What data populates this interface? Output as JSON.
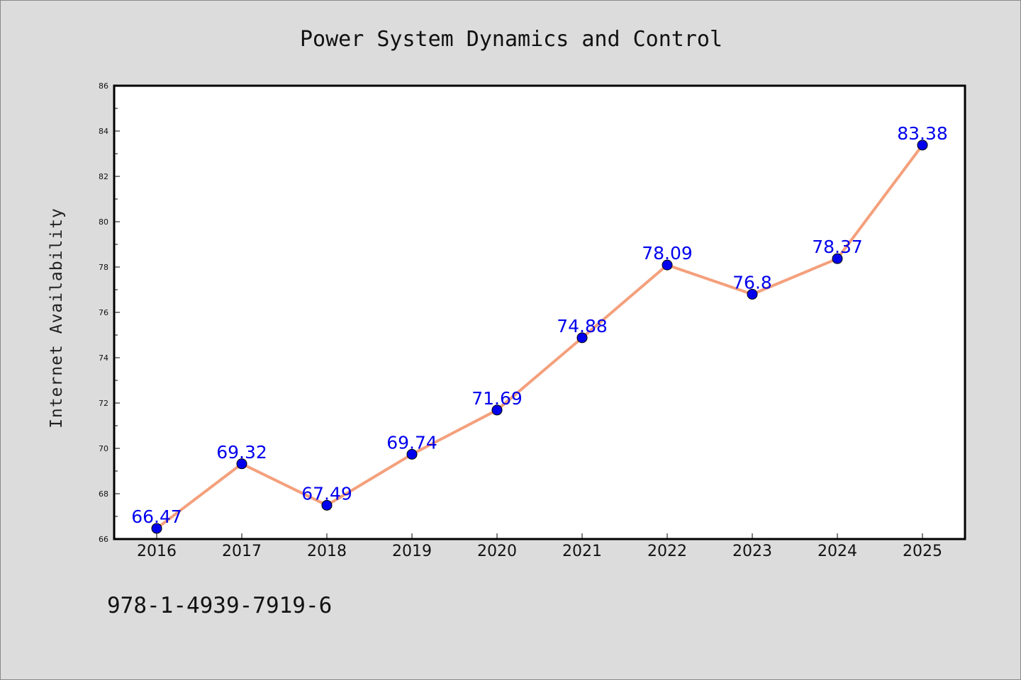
{
  "chart_data": {
    "type": "line",
    "title": "Power System Dynamics and Control",
    "xlabel": "",
    "ylabel": "Internet Availability",
    "x": [
      "2016",
      "2017",
      "2018",
      "2019",
      "2020",
      "2021",
      "2022",
      "2023",
      "2024",
      "2025"
    ],
    "series": [
      {
        "values": [
          66.47,
          69.32,
          67.49,
          69.74,
          71.69,
          74.88,
          78.09,
          76.8,
          78.37,
          83.38
        ],
        "labels": [
          "66.47",
          "69.32",
          "67.49",
          "69.74",
          "71.69",
          "74.88",
          "78.09",
          "76.8",
          "78.37",
          "83.38"
        ]
      }
    ],
    "ylim": [
      66,
      86
    ],
    "yticks": [
      "66",
      "68",
      "70",
      "72",
      "74",
      "76",
      "78",
      "80",
      "82",
      "84",
      "86"
    ],
    "grid": false,
    "legend": "none",
    "colors": {
      "line": "#f4a07c",
      "marker": "#0000ee",
      "label": "#0000ee"
    }
  },
  "footer": {
    "isbn": "978-1-4939-7919-6"
  }
}
